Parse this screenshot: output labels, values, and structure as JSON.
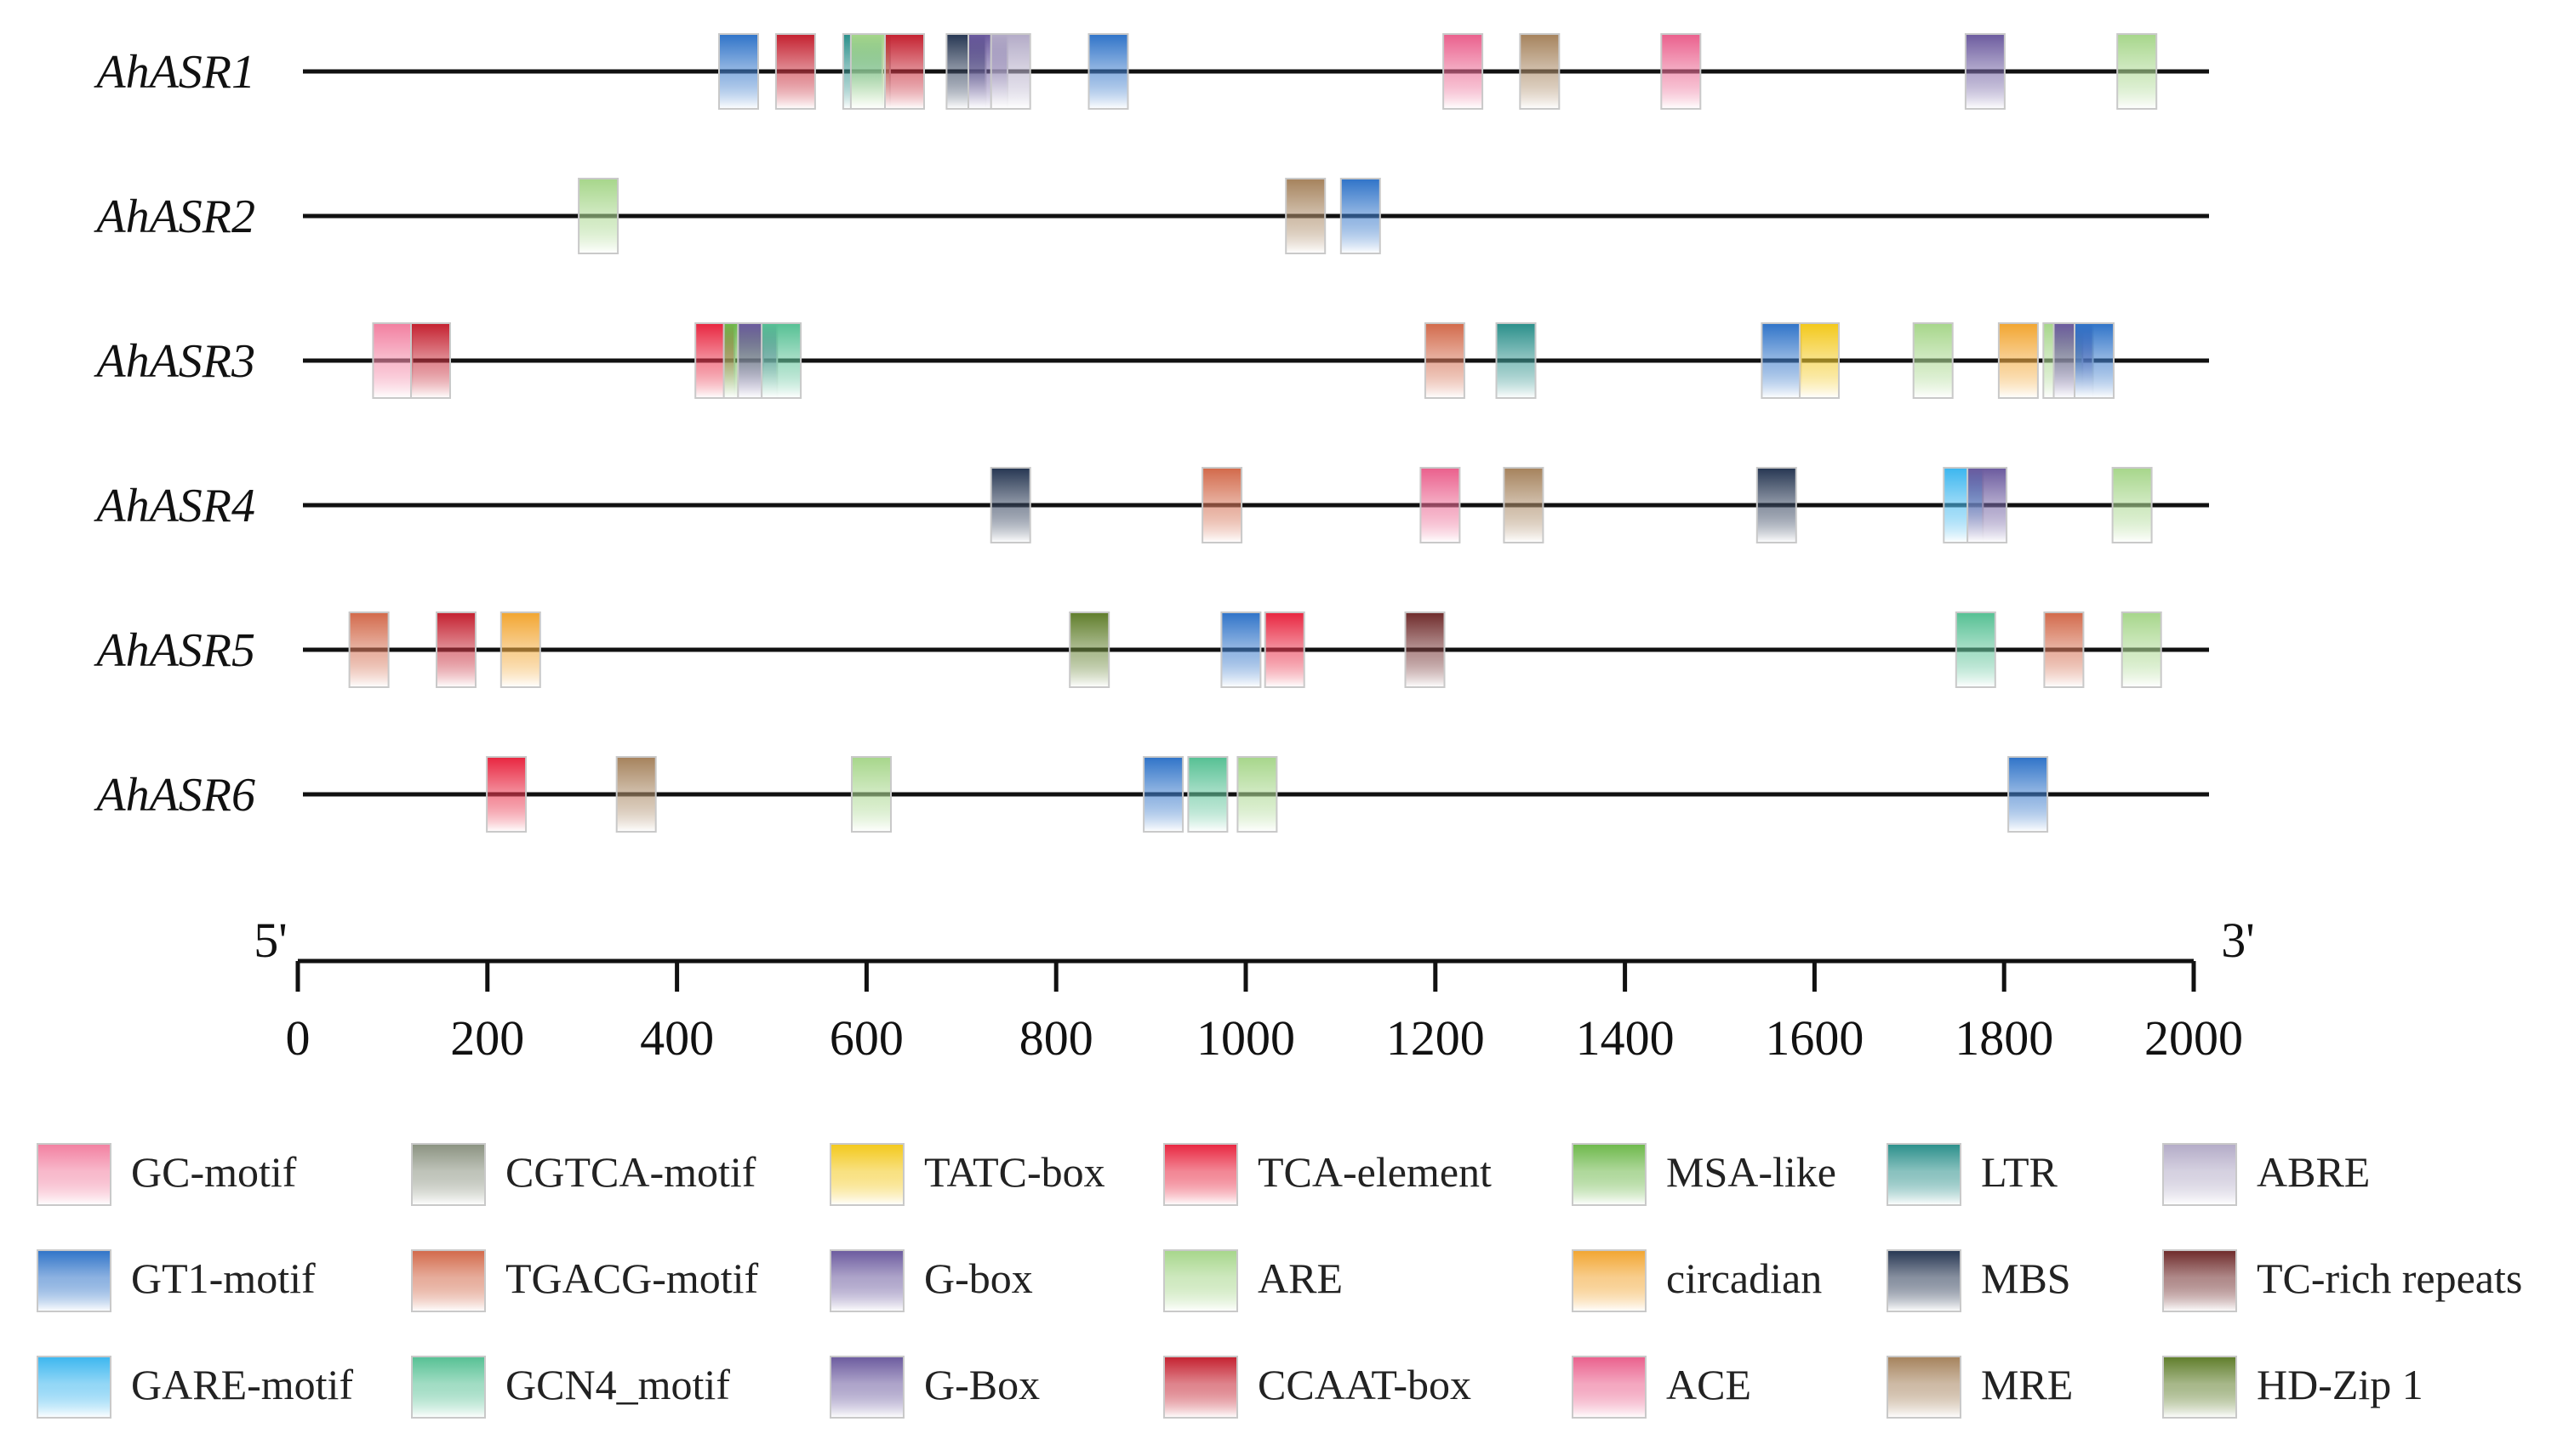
{
  "colors": {
    "GC-motif": "#f27fa0",
    "CGTCA-motif": "#8a9280",
    "TATC-box": "#f3c81a",
    "TCA-element": "#e8253f",
    "MSA-like": "#6db84a",
    "LTR": "#2a8f8a",
    "ABRE": "#b3abc7",
    "GT1-motif": "#2f73c8",
    "TGACG-motif": "#d2694a",
    "G-box": "#6b5a9e",
    "ARE": "#a6d68a",
    "circadian": "#f2a530",
    "MBS": "#263652",
    "TC-rich repeats": "#6e2a2a",
    "GARE-motif": "#3bb6ef",
    "GCN4_motif": "#55c093",
    "G-Box": "#f6b98a",
    "CCAAT-box": "#c4202f",
    "ACE": "#ea5f8c",
    "MRE": "#a5825c",
    "HD-Zip 1": "#5f7d2a"
  },
  "genes": [
    {
      "name": "AhASR1",
      "elements": [
        {
          "type": "GT1-motif",
          "pos": 465
        },
        {
          "type": "CCAAT-box",
          "pos": 525
        },
        {
          "type": "LTR",
          "pos": 596
        },
        {
          "type": "ARE",
          "pos": 604
        },
        {
          "type": "CCAAT-box",
          "pos": 640
        },
        {
          "type": "MBS",
          "pos": 705
        },
        {
          "type": "G-box",
          "pos": 728
        },
        {
          "type": "ABRE",
          "pos": 752
        },
        {
          "type": "GT1-motif",
          "pos": 855
        },
        {
          "type": "ACE",
          "pos": 1229
        },
        {
          "type": "MRE",
          "pos": 1310
        },
        {
          "type": "ACE",
          "pos": 1459
        },
        {
          "type": "G-box",
          "pos": 1780
        },
        {
          "type": "ARE",
          "pos": 1940
        }
      ]
    },
    {
      "name": "AhASR2",
      "elements": [
        {
          "type": "ARE",
          "pos": 317
        },
        {
          "type": "MRE",
          "pos": 1063
        },
        {
          "type": "GT1-motif",
          "pos": 1121
        }
      ]
    },
    {
      "name": "AhASR3",
      "elements": [
        {
          "type": "GC-motif",
          "pos": 100
        },
        {
          "type": "CCAAT-box",
          "pos": 140
        },
        {
          "type": "TCA-element",
          "pos": 440
        },
        {
          "type": "MSA-like",
          "pos": 470
        },
        {
          "type": "G-Box",
          "pos": 485
        },
        {
          "type": "GCN4_motif",
          "pos": 510
        },
        {
          "type": "TGACG-motif",
          "pos": 1210
        },
        {
          "type": "LTR",
          "pos": 1285
        },
        {
          "type": "GT1-motif",
          "pos": 1565
        },
        {
          "type": "TATC-box",
          "pos": 1605
        },
        {
          "type": "ARE",
          "pos": 1725
        },
        {
          "type": "circadian",
          "pos": 1815
        },
        {
          "type": "ARE",
          "pos": 1862
        },
        {
          "type": "G-Box",
          "pos": 1873
        },
        {
          "type": "GT1-motif",
          "pos": 1895
        }
      ]
    },
    {
      "name": "AhASR4",
      "elements": [
        {
          "type": "MBS",
          "pos": 752
        },
        {
          "type": "TGACG-motif",
          "pos": 975
        },
        {
          "type": "ACE",
          "pos": 1205
        },
        {
          "type": "MRE",
          "pos": 1293
        },
        {
          "type": "MBS",
          "pos": 1560
        },
        {
          "type": "GARE-motif",
          "pos": 1757
        },
        {
          "type": "G-box",
          "pos": 1782
        },
        {
          "type": "ARE",
          "pos": 1935
        }
      ]
    },
    {
      "name": "AhASR5",
      "elements": [
        {
          "type": "TGACG-motif",
          "pos": 75
        },
        {
          "type": "CCAAT-box",
          "pos": 167
        },
        {
          "type": "circadian",
          "pos": 235
        },
        {
          "type": "HD-Zip 1",
          "pos": 835
        },
        {
          "type": "GT1-motif",
          "pos": 995
        },
        {
          "type": "TCA-element",
          "pos": 1041
        },
        {
          "type": "TC-rich repeats",
          "pos": 1189
        },
        {
          "type": "GCN4_motif",
          "pos": 1770
        },
        {
          "type": "TGACG-motif",
          "pos": 1863
        },
        {
          "type": "ARE",
          "pos": 1945
        }
      ]
    },
    {
      "name": "AhASR6",
      "elements": [
        {
          "type": "TCA-element",
          "pos": 220
        },
        {
          "type": "MRE",
          "pos": 357
        },
        {
          "type": "ARE",
          "pos": 605
        },
        {
          "type": "GT1-motif",
          "pos": 913
        },
        {
          "type": "GCN4_motif",
          "pos": 960
        },
        {
          "type": "ARE",
          "pos": 1012
        },
        {
          "type": "GT1-motif",
          "pos": 1825
        }
      ]
    }
  ],
  "axis": {
    "start_label": "5'",
    "end_label": "3'",
    "min": 0,
    "max": 2000,
    "ticks": [
      "0",
      "200",
      "400",
      "600",
      "800",
      "1000",
      "1200",
      "1400",
      "1600",
      "1800",
      "2000"
    ]
  },
  "legend": {
    "rows": [
      [
        "GC-motif",
        "CGTCA-motif",
        "TATC-box",
        "TCA-element",
        "MSA-like",
        "LTR",
        "ABRE"
      ],
      [
        "GT1-motif",
        "TGACG-motif",
        "G-box",
        "ARE",
        "circadian",
        "MBS",
        "TC-rich repeats"
      ],
      [
        "GARE-motif",
        "GCN4_motif",
        "G-Box",
        "CCAAT-box",
        "ACE",
        "MRE",
        "HD-Zip 1"
      ]
    ]
  }
}
